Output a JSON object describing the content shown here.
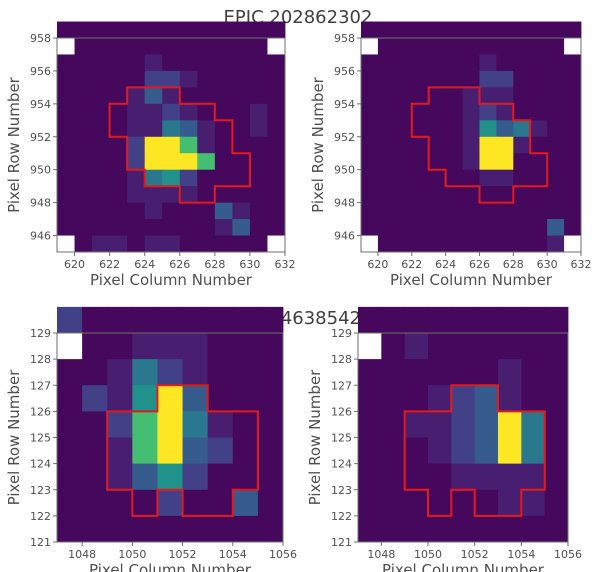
{
  "sections": [
    {
      "title": "EPIC 202862302"
    },
    {
      "title": "EPIC 246385425"
    }
  ],
  "chart_data": [
    {
      "type": "heatmap",
      "panel": "top-left",
      "xlabel": "Pixel Column Number",
      "ylabel": "Pixel Row Number",
      "xlim": [
        619,
        632
      ],
      "ylim": [
        945,
        958
      ],
      "xticks": [
        620,
        622,
        624,
        626,
        628,
        630,
        632
      ],
      "yticks": [
        946,
        948,
        950,
        952,
        954,
        956,
        958
      ],
      "x0": 619,
      "y0": 945,
      "grid": [
        [
          0,
          0,
          0,
          0,
          0,
          0,
          0,
          0,
          0,
          0,
          0,
          0,
          0
        ],
        [
          0,
          0,
          0,
          0,
          0,
          0,
          0,
          0,
          0,
          0,
          0,
          0,
          0
        ],
        [
          0,
          0,
          0,
          0,
          0,
          1,
          0,
          0,
          0,
          0,
          0,
          0,
          0
        ],
        [
          0,
          0,
          0,
          0,
          0,
          2,
          2,
          1,
          0,
          0,
          0,
          0,
          0
        ],
        [
          0,
          0,
          0,
          0,
          1,
          3,
          1,
          0,
          0,
          0,
          0,
          0,
          0
        ],
        [
          0,
          0,
          0,
          0,
          1,
          1,
          2,
          1,
          0,
          0,
          0,
          1,
          0
        ],
        [
          0,
          0,
          0,
          0,
          1,
          1,
          4,
          3,
          1,
          0,
          0,
          1,
          0
        ],
        [
          0,
          0,
          0,
          0,
          2,
          8,
          8,
          6,
          1,
          0,
          0,
          0,
          0
        ],
        [
          0,
          0,
          0,
          0,
          2,
          8,
          8,
          8,
          6,
          0,
          0,
          0,
          0
        ],
        [
          0,
          0,
          0,
          0,
          1,
          4,
          5,
          2,
          0,
          0,
          0,
          0,
          0
        ],
        [
          0,
          0,
          0,
          0,
          1,
          1,
          1,
          1,
          0,
          0,
          0,
          0,
          0
        ],
        [
          0,
          0,
          0,
          0,
          0,
          1,
          0,
          0,
          0,
          3,
          1,
          0,
          0
        ],
        [
          0,
          0,
          0,
          0,
          0,
          0,
          0,
          0,
          0,
          1,
          3,
          0,
          0
        ],
        [
          0,
          0,
          1,
          1,
          0,
          1,
          1,
          0,
          0,
          0,
          0,
          0,
          0
        ]
      ],
      "blank_corners": true,
      "aperture": [
        [
          623,
          955
        ],
        [
          626,
          955
        ],
        [
          626,
          954
        ],
        [
          628,
          954
        ],
        [
          628,
          953
        ],
        [
          629,
          953
        ],
        [
          629,
          951
        ],
        [
          630,
          951
        ],
        [
          630,
          949
        ],
        [
          628,
          949
        ],
        [
          628,
          948
        ],
        [
          626,
          948
        ],
        [
          626,
          949
        ],
        [
          624,
          949
        ],
        [
          624,
          950
        ],
        [
          623,
          950
        ],
        [
          623,
          952
        ],
        [
          622,
          952
        ],
        [
          622,
          954
        ],
        [
          623,
          954
        ]
      ]
    },
    {
      "type": "heatmap",
      "panel": "top-right",
      "xlabel": "Pixel Column Number",
      "ylabel": "Pixel Row Number",
      "xlim": [
        619,
        632
      ],
      "ylim": [
        945,
        958
      ],
      "xticks": [
        620,
        622,
        624,
        626,
        628,
        630,
        632
      ],
      "yticks": [
        946,
        948,
        950,
        952,
        954,
        956,
        958
      ],
      "x0": 619,
      "y0": 945,
      "grid": [
        [
          0,
          0,
          0,
          0,
          0,
          0,
          0,
          0,
          0,
          0,
          0,
          0,
          0
        ],
        [
          0,
          0,
          0,
          0,
          0,
          0,
          0,
          0,
          0,
          0,
          0,
          0,
          0
        ],
        [
          0,
          0,
          0,
          0,
          0,
          0,
          0,
          1,
          0,
          0,
          0,
          0,
          0
        ],
        [
          0,
          0,
          0,
          0,
          0,
          0,
          0,
          2,
          2,
          0,
          0,
          0,
          0
        ],
        [
          0,
          0,
          0,
          0,
          0,
          0,
          1,
          1,
          1,
          0,
          0,
          0,
          0
        ],
        [
          0,
          0,
          0,
          0,
          0,
          0,
          1,
          2,
          1,
          0,
          0,
          0,
          0
        ],
        [
          0,
          0,
          0,
          0,
          0,
          0,
          1,
          5,
          3,
          4,
          1,
          0,
          0
        ],
        [
          0,
          0,
          0,
          0,
          0,
          0,
          1,
          8,
          8,
          1,
          0,
          0,
          0
        ],
        [
          0,
          0,
          0,
          0,
          0,
          0,
          1,
          8,
          8,
          0,
          0,
          0,
          0
        ],
        [
          0,
          0,
          0,
          0,
          0,
          0,
          0,
          1,
          1,
          0,
          0,
          0,
          0
        ],
        [
          0,
          0,
          0,
          0,
          0,
          0,
          0,
          0,
          0,
          0,
          0,
          0,
          0
        ],
        [
          0,
          0,
          0,
          0,
          0,
          0,
          0,
          0,
          0,
          0,
          0,
          0,
          0
        ],
        [
          0,
          0,
          0,
          0,
          0,
          0,
          0,
          0,
          0,
          0,
          0,
          3,
          0
        ],
        [
          0,
          0,
          0,
          0,
          0,
          0,
          0,
          0,
          0,
          0,
          0,
          1,
          0
        ]
      ],
      "blank_corners": true,
      "aperture": [
        [
          623,
          955
        ],
        [
          626,
          955
        ],
        [
          626,
          954
        ],
        [
          628,
          954
        ],
        [
          628,
          953
        ],
        [
          629,
          953
        ],
        [
          629,
          951
        ],
        [
          630,
          951
        ],
        [
          630,
          949
        ],
        [
          628,
          949
        ],
        [
          628,
          948
        ],
        [
          626,
          948
        ],
        [
          626,
          949
        ],
        [
          624,
          949
        ],
        [
          624,
          950
        ],
        [
          623,
          950
        ],
        [
          623,
          952
        ],
        [
          622,
          952
        ],
        [
          622,
          954
        ],
        [
          623,
          954
        ]
      ]
    },
    {
      "type": "heatmap",
      "panel": "bottom-left",
      "xlabel": "Pixel Column Number",
      "ylabel": "Pixel Row Number",
      "xlim": [
        1047,
        1056
      ],
      "ylim": [
        121,
        129
      ],
      "xticks": [
        1048,
        1050,
        1052,
        1054,
        1056
      ],
      "yticks": [
        121,
        122,
        123,
        124,
        125,
        126,
        127,
        128,
        129
      ],
      "x0": 1047,
      "y0": 121,
      "grid": [
        [
          2,
          0,
          0,
          0,
          0,
          0,
          0,
          0,
          0
        ],
        [
          0,
          0,
          0,
          1,
          1,
          1,
          0,
          0,
          0
        ],
        [
          0,
          0,
          1,
          4,
          2,
          1,
          0,
          0,
          0
        ],
        [
          0,
          2,
          1,
          5,
          8,
          3,
          0,
          0,
          0
        ],
        [
          0,
          0,
          2,
          6,
          8,
          4,
          1,
          0,
          0
        ],
        [
          0,
          0,
          1,
          6,
          8,
          3,
          2,
          0,
          0
        ],
        [
          0,
          0,
          1,
          3,
          5,
          2,
          0,
          0,
          0
        ],
        [
          0,
          0,
          0,
          0,
          2,
          0,
          0,
          3,
          0
        ],
        [
          0,
          0,
          0,
          0,
          0,
          0,
          0,
          0,
          0
        ]
      ],
      "blank_corners": false,
      "aperture": [
        [
          1051,
          127
        ],
        [
          1053,
          127
        ],
        [
          1053,
          126
        ],
        [
          1055,
          126
        ],
        [
          1055,
          123
        ],
        [
          1054,
          123
        ],
        [
          1054,
          122
        ],
        [
          1052,
          122
        ],
        [
          1052,
          123
        ],
        [
          1051,
          123
        ],
        [
          1051,
          122
        ],
        [
          1050,
          122
        ],
        [
          1050,
          123
        ],
        [
          1049,
          123
        ],
        [
          1049,
          126
        ],
        [
          1051,
          126
        ]
      ]
    },
    {
      "type": "heatmap",
      "panel": "bottom-right",
      "xlabel": "Pixel Column Number",
      "ylabel": "Pixel Row Number",
      "xlim": [
        1047,
        1056
      ],
      "ylim": [
        121,
        129
      ],
      "xticks": [
        1048,
        1050,
        1052,
        1054,
        1056
      ],
      "yticks": [
        121,
        122,
        123,
        124,
        125,
        126,
        127,
        128,
        129
      ],
      "x0": 1047,
      "y0": 121,
      "grid": [
        [
          0,
          0,
          0,
          0,
          0,
          0,
          0,
          0,
          0
        ],
        [
          0,
          0,
          1,
          0,
          0,
          0,
          0,
          0,
          0
        ],
        [
          0,
          0,
          0,
          0,
          0,
          0,
          1,
          0,
          0
        ],
        [
          0,
          0,
          0,
          1,
          2,
          3,
          1,
          0,
          0
        ],
        [
          0,
          0,
          1,
          1,
          2,
          3,
          8,
          4,
          0
        ],
        [
          0,
          0,
          0,
          1,
          2,
          3,
          8,
          4,
          0
        ],
        [
          0,
          0,
          0,
          0,
          1,
          1,
          1,
          1,
          0
        ],
        [
          0,
          0,
          0,
          0,
          0,
          0,
          1,
          1,
          0
        ],
        [
          0,
          0,
          0,
          0,
          0,
          0,
          0,
          0,
          0
        ]
      ],
      "blank_corners": false,
      "aperture": [
        [
          1051,
          127
        ],
        [
          1053,
          127
        ],
        [
          1053,
          126
        ],
        [
          1055,
          126
        ],
        [
          1055,
          123
        ],
        [
          1054,
          123
        ],
        [
          1054,
          122
        ],
        [
          1052,
          122
        ],
        [
          1052,
          123
        ],
        [
          1051,
          123
        ],
        [
          1051,
          122
        ],
        [
          1050,
          122
        ],
        [
          1050,
          123
        ],
        [
          1049,
          123
        ],
        [
          1049,
          126
        ],
        [
          1051,
          126
        ]
      ]
    }
  ],
  "colors": {
    "background": "#46085c",
    "aperture": "#e31a1c",
    "frame": "#6f6f6f",
    "text": "#505050"
  }
}
